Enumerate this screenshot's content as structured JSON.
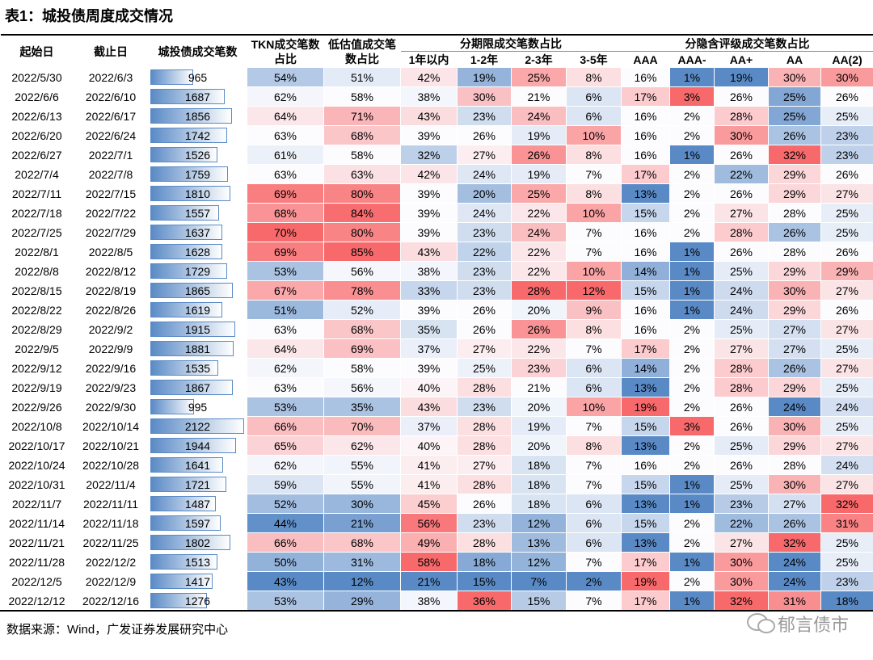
{
  "title": "表1：城投债周度成交情况",
  "table": {
    "header_top": [
      "起始日",
      "截止日",
      "城投债成交笔数",
      "TKN成交笔数占比",
      "低估值成交笔数占比"
    ],
    "groups": [
      "分期限成交笔数占比",
      "分隐含评级成交笔数占比"
    ],
    "header_sub": [
      "1年以内",
      "1-2年",
      "2-3年",
      "3-5年",
      "AAA",
      "AAA-",
      "AA+",
      "AA",
      "AA(2)"
    ],
    "rows": [
      [
        "2022/5/30",
        "2022/6/3",
        965,
        "54%",
        "51%",
        "42%",
        "19%",
        "25%",
        "8%",
        "16%",
        "1%",
        "19%",
        "30%",
        "30%"
      ],
      [
        "2022/6/6",
        "2022/6/10",
        1687,
        "62%",
        "58%",
        "38%",
        "30%",
        "21%",
        "6%",
        "17%",
        "3%",
        "26%",
        "25%",
        "26%"
      ],
      [
        "2022/6/13",
        "2022/6/17",
        1856,
        "64%",
        "71%",
        "43%",
        "23%",
        "24%",
        "6%",
        "16%",
        "2%",
        "28%",
        "25%",
        "25%"
      ],
      [
        "2022/6/20",
        "2022/6/24",
        1742,
        "63%",
        "68%",
        "39%",
        "26%",
        "19%",
        "10%",
        "16%",
        "2%",
        "30%",
        "26%",
        "23%"
      ],
      [
        "2022/6/27",
        "2022/7/1",
        1526,
        "61%",
        "58%",
        "32%",
        "27%",
        "26%",
        "8%",
        "16%",
        "1%",
        "26%",
        "32%",
        "23%"
      ],
      [
        "2022/7/4",
        "2022/7/8",
        1759,
        "63%",
        "63%",
        "42%",
        "24%",
        "19%",
        "7%",
        "17%",
        "2%",
        "22%",
        "29%",
        "26%"
      ],
      [
        "2022/7/11",
        "2022/7/15",
        1810,
        "69%",
        "80%",
        "39%",
        "20%",
        "25%",
        "8%",
        "13%",
        "2%",
        "26%",
        "29%",
        "27%"
      ],
      [
        "2022/7/18",
        "2022/7/22",
        1557,
        "68%",
        "84%",
        "39%",
        "24%",
        "22%",
        "10%",
        "15%",
        "2%",
        "27%",
        "28%",
        "25%"
      ],
      [
        "2022/7/25",
        "2022/7/29",
        1637,
        "70%",
        "80%",
        "39%",
        "23%",
        "24%",
        "7%",
        "16%",
        "2%",
        "28%",
        "26%",
        "25%"
      ],
      [
        "2022/8/1",
        "2022/8/5",
        1628,
        "69%",
        "85%",
        "43%",
        "22%",
        "22%",
        "7%",
        "16%",
        "1%",
        "26%",
        "28%",
        "26%"
      ],
      [
        "2022/8/8",
        "2022/8/12",
        1729,
        "53%",
        "56%",
        "38%",
        "23%",
        "22%",
        "10%",
        "14%",
        "1%",
        "25%",
        "29%",
        "29%"
      ],
      [
        "2022/8/15",
        "2022/8/19",
        1865,
        "67%",
        "78%",
        "33%",
        "23%",
        "28%",
        "12%",
        "15%",
        "1%",
        "24%",
        "30%",
        "27%"
      ],
      [
        "2022/8/22",
        "2022/8/26",
        1619,
        "51%",
        "52%",
        "39%",
        "26%",
        "20%",
        "9%",
        "16%",
        "1%",
        "24%",
        "29%",
        "26%"
      ],
      [
        "2022/8/29",
        "2022/9/2",
        1915,
        "63%",
        "68%",
        "35%",
        "26%",
        "26%",
        "8%",
        "16%",
        "2%",
        "25%",
        "27%",
        "27%"
      ],
      [
        "2022/9/5",
        "2022/9/9",
        1881,
        "64%",
        "69%",
        "37%",
        "27%",
        "22%",
        "7%",
        "17%",
        "2%",
        "27%",
        "27%",
        "25%"
      ],
      [
        "2022/9/12",
        "2022/9/16",
        1535,
        "62%",
        "58%",
        "39%",
        "25%",
        "23%",
        "6%",
        "14%",
        "2%",
        "28%",
        "26%",
        "27%"
      ],
      [
        "2022/9/19",
        "2022/9/23",
        1867,
        "63%",
        "56%",
        "40%",
        "28%",
        "21%",
        "6%",
        "13%",
        "2%",
        "28%",
        "29%",
        "25%"
      ],
      [
        "2022/9/26",
        "2022/9/30",
        995,
        "53%",
        "35%",
        "43%",
        "23%",
        "20%",
        "10%",
        "19%",
        "2%",
        "26%",
        "24%",
        "24%"
      ],
      [
        "2022/10/8",
        "2022/10/14",
        2122,
        "66%",
        "70%",
        "37%",
        "28%",
        "19%",
        "7%",
        "15%",
        "3%",
        "26%",
        "30%",
        "25%"
      ],
      [
        "2022/10/17",
        "2022/10/21",
        1944,
        "65%",
        "62%",
        "40%",
        "28%",
        "20%",
        "8%",
        "13%",
        "2%",
        "25%",
        "29%",
        "27%"
      ],
      [
        "2022/10/24",
        "2022/10/28",
        1641,
        "62%",
        "55%",
        "41%",
        "27%",
        "18%",
        "7%",
        "16%",
        "2%",
        "26%",
        "28%",
        "24%"
      ],
      [
        "2022/10/31",
        "2022/11/4",
        1721,
        "59%",
        "55%",
        "41%",
        "28%",
        "18%",
        "7%",
        "15%",
        "1%",
        "25%",
        "30%",
        "27%"
      ],
      [
        "2022/11/7",
        "2022/11/11",
        1487,
        "52%",
        "30%",
        "45%",
        "26%",
        "18%",
        "6%",
        "13%",
        "1%",
        "23%",
        "27%",
        "32%"
      ],
      [
        "2022/11/14",
        "2022/11/18",
        1597,
        "44%",
        "21%",
        "56%",
        "23%",
        "12%",
        "6%",
        "15%",
        "2%",
        "22%",
        "26%",
        "31%"
      ],
      [
        "2022/11/21",
        "2022/11/25",
        1802,
        "66%",
        "68%",
        "49%",
        "28%",
        "13%",
        "6%",
        "13%",
        "2%",
        "27%",
        "32%",
        "25%"
      ],
      [
        "2022/11/28",
        "2022/12/2",
        1513,
        "50%",
        "31%",
        "58%",
        "18%",
        "12%",
        "7%",
        "17%",
        "1%",
        "30%",
        "24%",
        "25%"
      ],
      [
        "2022/12/5",
        "2022/12/9",
        1417,
        "43%",
        "12%",
        "21%",
        "15%",
        "7%",
        "2%",
        "19%",
        "2%",
        "30%",
        "24%",
        "23%"
      ],
      [
        "2022/12/12",
        "2022/12/16",
        1276,
        "53%",
        "29%",
        "38%",
        "36%",
        "15%",
        "7%",
        "17%",
        "1%",
        "32%",
        "31%",
        "18%"
      ]
    ]
  },
  "source": "数据来源：Wind，广发证券发展研究中心",
  "watermark": "郁言债市"
}
